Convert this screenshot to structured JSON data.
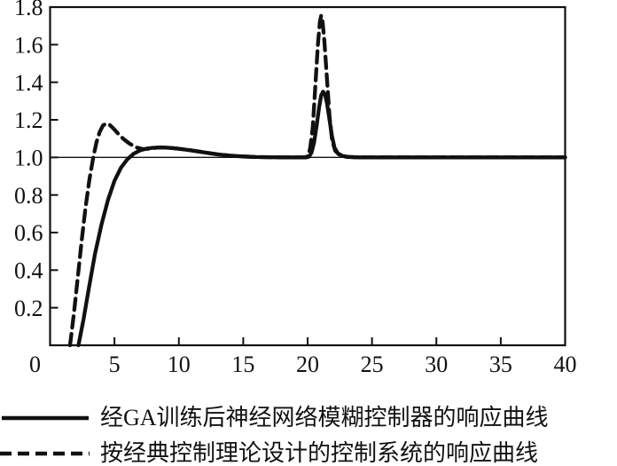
{
  "figure": {
    "background": "#ffffff",
    "ink_color": "#111111"
  },
  "legend": {
    "position": "below-chart",
    "items": [
      {
        "style": "solid",
        "label": "经GA训练后神经网络模糊控制器的响应曲线"
      },
      {
        "style": "dashed",
        "label": "按经典控制理论设计的控制系统的响应曲线"
      }
    ]
  },
  "chart_data": {
    "type": "line",
    "title": "",
    "xlabel": "",
    "ylabel": "",
    "xlim": [
      0,
      40
    ],
    "ylim": [
      0,
      1.8
    ],
    "xticks": [
      0,
      5,
      10,
      15,
      20,
      25,
      30,
      35,
      40
    ],
    "yticks": [
      0.2,
      0.4,
      0.6,
      0.8,
      1.0,
      1.2,
      1.4,
      1.6,
      1.8
    ],
    "grid": false,
    "reference_line_y": 1.0,
    "legend_position": "below",
    "series": [
      {
        "name": "经GA训练后神经网络模糊控制器的响应曲线",
        "line_style": "solid",
        "points": [
          [
            2.2,
            0
          ],
          [
            2.6,
            0.14
          ],
          [
            3.0,
            0.3
          ],
          [
            3.5,
            0.49
          ],
          [
            4.0,
            0.645
          ],
          [
            4.5,
            0.775
          ],
          [
            5.0,
            0.875
          ],
          [
            5.5,
            0.945
          ],
          [
            6.0,
            0.99
          ],
          [
            6.5,
            1.02
          ],
          [
            7.0,
            1.038
          ],
          [
            7.5,
            1.047
          ],
          [
            8.0,
            1.051
          ],
          [
            8.5,
            1.053
          ],
          [
            9.0,
            1.052
          ],
          [
            9.5,
            1.05
          ],
          [
            10.0,
            1.046
          ],
          [
            11,
            1.037
          ],
          [
            12,
            1.026
          ],
          [
            13,
            1.016
          ],
          [
            14,
            1.009
          ],
          [
            15,
            1.005
          ],
          [
            16,
            1.002
          ],
          [
            17,
            1.001
          ],
          [
            18,
            1.0
          ],
          [
            19,
            1.0
          ],
          [
            19.9,
            1.0
          ],
          [
            20.1,
            1.004
          ],
          [
            20.3,
            1.025
          ],
          [
            20.5,
            1.08
          ],
          [
            20.7,
            1.17
          ],
          [
            20.9,
            1.27
          ],
          [
            21.05,
            1.33
          ],
          [
            21.2,
            1.35
          ],
          [
            21.35,
            1.335
          ],
          [
            21.5,
            1.29
          ],
          [
            21.7,
            1.2
          ],
          [
            21.9,
            1.11
          ],
          [
            22.1,
            1.05
          ],
          [
            22.35,
            1.022
          ],
          [
            22.7,
            1.008
          ],
          [
            23.2,
            1.002
          ],
          [
            24,
            1.0
          ],
          [
            26,
            1.0
          ],
          [
            28,
            1.0
          ],
          [
            30,
            1.0
          ],
          [
            32,
            1.0
          ],
          [
            34,
            1.0
          ],
          [
            36,
            1.0
          ],
          [
            38,
            1.0
          ],
          [
            40,
            1.0
          ]
        ]
      },
      {
        "name": "按经典控制理论设计的控制系统的响应曲线",
        "line_style": "dashed",
        "points": [
          [
            1.55,
            0
          ],
          [
            1.85,
            0.17
          ],
          [
            2.15,
            0.36
          ],
          [
            2.45,
            0.555
          ],
          [
            2.75,
            0.73
          ],
          [
            3.05,
            0.88
          ],
          [
            3.35,
            1.0
          ],
          [
            3.6,
            1.08
          ],
          [
            3.85,
            1.135
          ],
          [
            4.1,
            1.17
          ],
          [
            4.35,
            1.18
          ],
          [
            4.6,
            1.175
          ],
          [
            4.9,
            1.155
          ],
          [
            5.3,
            1.125
          ],
          [
            5.7,
            1.098
          ],
          [
            6.2,
            1.072
          ],
          [
            6.7,
            1.053
          ],
          [
            7.2,
            1.044
          ],
          [
            7.7,
            1.046
          ],
          [
            8.2,
            1.051
          ],
          [
            8.7,
            1.053
          ],
          [
            9.2,
            1.051
          ],
          [
            10,
            1.046
          ],
          [
            11,
            1.037
          ],
          [
            12,
            1.026
          ],
          [
            13,
            1.016
          ],
          [
            14,
            1.009
          ],
          [
            15,
            1.005
          ],
          [
            16,
            1.002
          ],
          [
            17,
            1.001
          ],
          [
            18,
            1.0
          ],
          [
            19,
            1.0
          ],
          [
            19.85,
            1.0
          ],
          [
            20.05,
            1.01
          ],
          [
            20.2,
            1.05
          ],
          [
            20.4,
            1.16
          ],
          [
            20.6,
            1.38
          ],
          [
            20.8,
            1.6
          ],
          [
            20.95,
            1.72
          ],
          [
            21.05,
            1.755
          ],
          [
            21.15,
            1.73
          ],
          [
            21.3,
            1.62
          ],
          [
            21.5,
            1.42
          ],
          [
            21.7,
            1.22
          ],
          [
            21.9,
            1.09
          ],
          [
            22.15,
            1.035
          ],
          [
            22.5,
            1.012
          ],
          [
            23,
            1.003
          ],
          [
            24,
            1.0
          ],
          [
            26,
            1.0
          ],
          [
            28,
            1.0
          ],
          [
            30,
            1.0
          ],
          [
            32,
            1.0
          ],
          [
            34,
            1.0
          ],
          [
            36,
            1.0
          ],
          [
            38,
            1.0
          ],
          [
            40,
            1.0
          ]
        ]
      }
    ]
  }
}
